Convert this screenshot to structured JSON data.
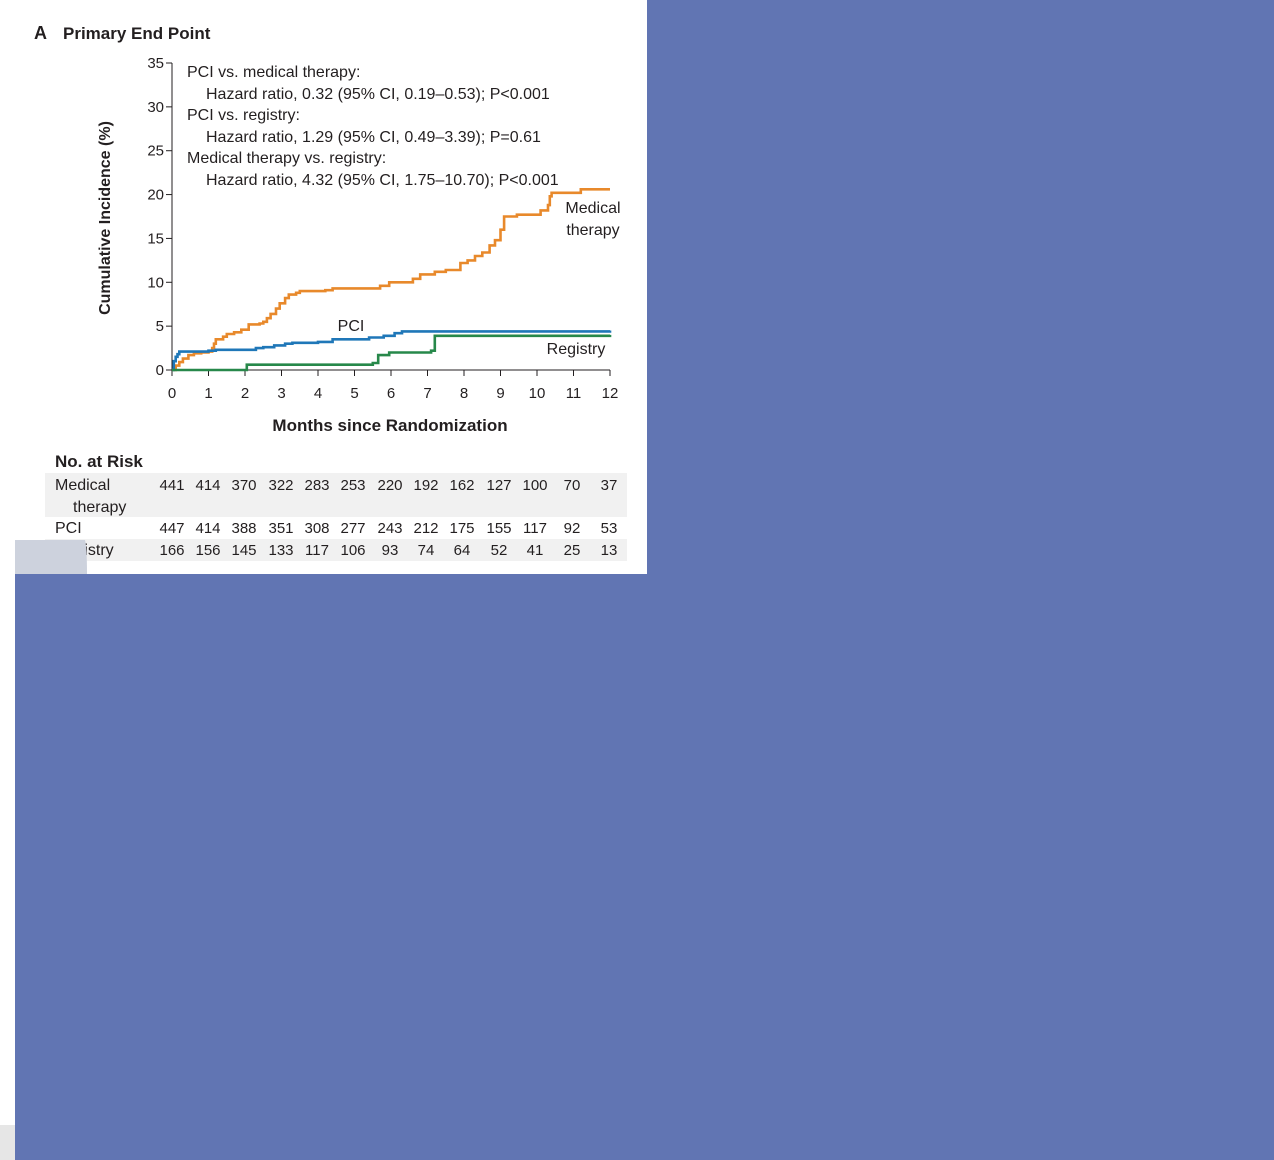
{
  "panel": {
    "letter": "A",
    "title": "Primary End Point"
  },
  "chart_data": {
    "type": "line",
    "step": true,
    "xlabel": "Months since Randomization",
    "ylabel": "Cumulative Incidence (%)",
    "xlim": [
      0,
      12
    ],
    "ylim": [
      0,
      35
    ],
    "x_ticks": [
      0,
      1,
      2,
      3,
      4,
      5,
      6,
      7,
      8,
      9,
      10,
      11,
      12
    ],
    "y_ticks": [
      0,
      5,
      10,
      15,
      20,
      25,
      30,
      35
    ],
    "grid": false,
    "series": [
      {
        "name": "Medical therapy",
        "label_lines": [
          "Medical",
          "therapy"
        ],
        "color": "#e8892b",
        "points": [
          [
            0,
            0
          ],
          [
            0.1,
            0.5
          ],
          [
            0.2,
            0.9
          ],
          [
            0.3,
            1.3
          ],
          [
            0.45,
            1.7
          ],
          [
            0.6,
            1.9
          ],
          [
            0.8,
            2.0
          ],
          [
            1.0,
            2.1
          ],
          [
            1.1,
            2.5
          ],
          [
            1.15,
            3.0
          ],
          [
            1.2,
            3.5
          ],
          [
            1.4,
            3.8
          ],
          [
            1.5,
            4.1
          ],
          [
            1.7,
            4.3
          ],
          [
            1.9,
            4.6
          ],
          [
            2.1,
            5.2
          ],
          [
            2.4,
            5.3
          ],
          [
            2.5,
            5.5
          ],
          [
            2.6,
            5.9
          ],
          [
            2.7,
            6.4
          ],
          [
            2.85,
            7.0
          ],
          [
            2.95,
            7.6
          ],
          [
            3.1,
            8.2
          ],
          [
            3.2,
            8.6
          ],
          [
            3.4,
            8.8
          ],
          [
            3.5,
            9.0
          ],
          [
            4.2,
            9.1
          ],
          [
            4.4,
            9.3
          ],
          [
            5.7,
            9.6
          ],
          [
            5.95,
            10.0
          ],
          [
            6.6,
            10.4
          ],
          [
            6.8,
            10.9
          ],
          [
            7.2,
            11.2
          ],
          [
            7.5,
            11.4
          ],
          [
            7.9,
            12.2
          ],
          [
            8.1,
            12.5
          ],
          [
            8.3,
            13.0
          ],
          [
            8.5,
            13.4
          ],
          [
            8.7,
            14.2
          ],
          [
            8.85,
            14.8
          ],
          [
            9.0,
            16.0
          ],
          [
            9.1,
            17.5
          ],
          [
            9.45,
            17.7
          ],
          [
            10.1,
            18.2
          ],
          [
            10.3,
            18.8
          ],
          [
            10.35,
            19.8
          ],
          [
            10.4,
            20.2
          ],
          [
            11.2,
            20.6
          ],
          [
            12.0,
            20.6
          ]
        ]
      },
      {
        "name": "PCI",
        "label_lines": [
          "PCI"
        ],
        "color": "#1f77b8",
        "points": [
          [
            0,
            0
          ],
          [
            0.05,
            1.0
          ],
          [
            0.1,
            1.5
          ],
          [
            0.15,
            1.8
          ],
          [
            0.2,
            2.1
          ],
          [
            1.0,
            2.2
          ],
          [
            1.2,
            2.3
          ],
          [
            2.3,
            2.5
          ],
          [
            2.5,
            2.6
          ],
          [
            2.8,
            2.8
          ],
          [
            3.1,
            3.0
          ],
          [
            3.3,
            3.1
          ],
          [
            4.0,
            3.2
          ],
          [
            4.4,
            3.5
          ],
          [
            5.4,
            3.7
          ],
          [
            5.8,
            3.9
          ],
          [
            6.1,
            4.2
          ],
          [
            6.3,
            4.4
          ],
          [
            12.0,
            4.5
          ]
        ]
      },
      {
        "name": "Registry",
        "label_lines": [
          "Registry"
        ],
        "color": "#27884a",
        "points": [
          [
            0,
            0
          ],
          [
            2.0,
            0
          ],
          [
            2.05,
            0.6
          ],
          [
            5.5,
            0.8
          ],
          [
            5.65,
            1.7
          ],
          [
            5.95,
            2.0
          ],
          [
            7.1,
            2.2
          ],
          [
            7.2,
            3.9
          ],
          [
            12.0,
            4.0
          ]
        ]
      }
    ],
    "annotations": [
      "PCI vs. medical therapy:",
      "Hazard ratio, 0.32 (95% CI, 0.19–0.53); P<0.001",
      "PCI vs. registry:",
      "Hazard ratio, 1.29 (95% CI, 0.49–3.39); P=0.61",
      "Medical therapy vs. registry:",
      "Hazard ratio, 4.32 (95% CI, 1.75–10.70); P<0.001"
    ],
    "risk_table": {
      "title": "No. at Risk",
      "rows": [
        {
          "label_lines": [
            "Medical",
            "therapy"
          ],
          "values": [
            441,
            414,
            370,
            322,
            283,
            253,
            220,
            192,
            162,
            127,
            100,
            70,
            37
          ]
        },
        {
          "label_lines": [
            "PCI"
          ],
          "values": [
            447,
            414,
            388,
            351,
            308,
            277,
            243,
            212,
            175,
            155,
            117,
            92,
            53
          ]
        },
        {
          "label_lines": [
            "Registry"
          ],
          "values": [
            166,
            156,
            145,
            133,
            117,
            106,
            93,
            74,
            64,
            52,
            41,
            25,
            13
          ]
        }
      ]
    }
  }
}
